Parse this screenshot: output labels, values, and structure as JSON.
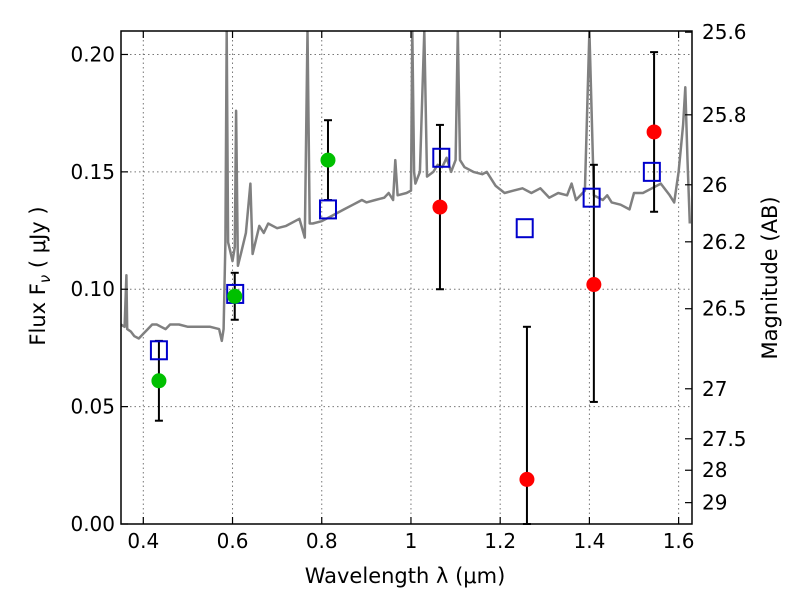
{
  "chart_data": {
    "type": "scatter",
    "xlabel": "Wavelength  λ (μm)",
    "ylabel": "Flux  F",
    "ylabel_sub": "ν",
    "ylabel_unit": "( μJy )",
    "y2label": "Magnitude (AB)",
    "xlim": [
      0.35,
      1.63
    ],
    "ylim": [
      0.0,
      0.21
    ],
    "grid": true,
    "x_ticks": [
      {
        "value": 0.4,
        "label": "0.4"
      },
      {
        "value": 0.6,
        "label": "0.6"
      },
      {
        "value": 0.8,
        "label": "0.8"
      },
      {
        "value": 1.0,
        "label": "1"
      },
      {
        "value": 1.2,
        "label": "1.2"
      },
      {
        "value": 1.4,
        "label": "1.4"
      },
      {
        "value": 1.6,
        "label": "1.6"
      }
    ],
    "y_ticks": [
      {
        "value": 0.0,
        "label": "0.00"
      },
      {
        "value": 0.05,
        "label": "0.05"
      },
      {
        "value": 0.1,
        "label": "0.10"
      },
      {
        "value": 0.15,
        "label": "0.15"
      },
      {
        "value": 0.2,
        "label": "0.20"
      }
    ],
    "y2_ticks": [
      {
        "flux": 0.2095,
        "label": "25.6"
      },
      {
        "flux": 0.1743,
        "label": "25.8"
      },
      {
        "flux": 0.1445,
        "label": "26"
      },
      {
        "flux": 0.1202,
        "label": "26.2"
      },
      {
        "flux": 0.0917,
        "label": "26.5"
      },
      {
        "flux": 0.0576,
        "label": "27"
      },
      {
        "flux": 0.0363,
        "label": "27.5"
      },
      {
        "flux": 0.0229,
        "label": "28"
      },
      {
        "flux": 0.0091,
        "label": "29"
      }
    ],
    "colors": {
      "spectrum": "#808080",
      "green": "#00c000",
      "red": "#ff0000",
      "model": "#0000cc",
      "errorbar": "#000000"
    },
    "observed_green": [
      {
        "x": 0.435,
        "y": 0.061,
        "err_low": 0.044,
        "err_high": 0.078
      },
      {
        "x": 0.605,
        "y": 0.097,
        "err_low": 0.087,
        "err_high": 0.107
      },
      {
        "x": 0.814,
        "y": 0.155,
        "err_low": 0.138,
        "err_high": 0.172
      }
    ],
    "observed_red": [
      {
        "x": 1.065,
        "y": 0.135,
        "err_low": 0.1,
        "err_high": 0.17
      },
      {
        "x": 1.26,
        "y": 0.019,
        "err_low": 0.0,
        "err_high": 0.084
      },
      {
        "x": 1.41,
        "y": 0.102,
        "err_low": 0.052,
        "err_high": 0.153
      },
      {
        "x": 1.545,
        "y": 0.167,
        "err_low": 0.133,
        "err_high": 0.201
      }
    ],
    "model_photometry": [
      {
        "x": 0.435,
        "y": 0.074
      },
      {
        "x": 0.606,
        "y": 0.098
      },
      {
        "x": 0.814,
        "y": 0.134
      },
      {
        "x": 1.068,
        "y": 0.156
      },
      {
        "x": 1.255,
        "y": 0.126
      },
      {
        "x": 1.405,
        "y": 0.139
      },
      {
        "x": 1.54,
        "y": 0.15
      }
    ],
    "spectrum": [
      [
        0.35,
        0.085
      ],
      [
        0.358,
        0.084
      ],
      [
        0.362,
        0.106
      ],
      [
        0.364,
        0.083
      ],
      [
        0.372,
        0.082
      ],
      [
        0.38,
        0.08
      ],
      [
        0.39,
        0.079
      ],
      [
        0.4,
        0.081
      ],
      [
        0.41,
        0.083
      ],
      [
        0.42,
        0.085
      ],
      [
        0.43,
        0.085
      ],
      [
        0.44,
        0.084
      ],
      [
        0.45,
        0.083
      ],
      [
        0.46,
        0.085
      ],
      [
        0.48,
        0.085
      ],
      [
        0.5,
        0.084
      ],
      [
        0.52,
        0.084
      ],
      [
        0.55,
        0.084
      ],
      [
        0.57,
        0.083
      ],
      [
        0.576,
        0.078
      ],
      [
        0.58,
        0.083
      ],
      [
        0.584,
        0.12
      ],
      [
        0.587,
        0.21
      ],
      [
        0.59,
        0.12
      ],
      [
        0.594,
        0.117
      ],
      [
        0.6,
        0.112
      ],
      [
        0.605,
        0.118
      ],
      [
        0.608,
        0.176
      ],
      [
        0.612,
        0.11
      ],
      [
        0.62,
        0.116
      ],
      [
        0.63,
        0.124
      ],
      [
        0.64,
        0.145
      ],
      [
        0.645,
        0.115
      ],
      [
        0.66,
        0.127
      ],
      [
        0.67,
        0.124
      ],
      [
        0.68,
        0.128
      ],
      [
        0.7,
        0.126
      ],
      [
        0.72,
        0.127
      ],
      [
        0.75,
        0.13
      ],
      [
        0.762,
        0.122
      ],
      [
        0.768,
        0.21
      ],
      [
        0.773,
        0.128
      ],
      [
        0.78,
        0.128
      ],
      [
        0.8,
        0.129
      ],
      [
        0.82,
        0.131
      ],
      [
        0.83,
        0.132
      ],
      [
        0.85,
        0.134
      ],
      [
        0.87,
        0.136
      ],
      [
        0.88,
        0.137
      ],
      [
        0.89,
        0.138
      ],
      [
        0.9,
        0.137
      ],
      [
        0.92,
        0.138
      ],
      [
        0.94,
        0.139
      ],
      [
        0.95,
        0.141
      ],
      [
        0.96,
        0.138
      ],
      [
        0.965,
        0.155
      ],
      [
        0.97,
        0.14
      ],
      [
        0.99,
        0.141
      ],
      [
        1.0,
        0.142
      ],
      [
        1.003,
        0.21
      ],
      [
        1.007,
        0.15
      ],
      [
        1.01,
        0.145
      ],
      [
        1.02,
        0.15
      ],
      [
        1.03,
        0.21
      ],
      [
        1.036,
        0.148
      ],
      [
        1.05,
        0.15
      ],
      [
        1.06,
        0.153
      ],
      [
        1.07,
        0.152
      ],
      [
        1.08,
        0.156
      ],
      [
        1.09,
        0.15
      ],
      [
        1.1,
        0.155
      ],
      [
        1.105,
        0.21
      ],
      [
        1.11,
        0.155
      ],
      [
        1.12,
        0.152
      ],
      [
        1.14,
        0.15
      ],
      [
        1.16,
        0.149
      ],
      [
        1.17,
        0.15
      ],
      [
        1.19,
        0.144
      ],
      [
        1.21,
        0.141
      ],
      [
        1.23,
        0.142
      ],
      [
        1.25,
        0.143
      ],
      [
        1.27,
        0.141
      ],
      [
        1.29,
        0.143
      ],
      [
        1.31,
        0.139
      ],
      [
        1.33,
        0.141
      ],
      [
        1.35,
        0.14
      ],
      [
        1.36,
        0.145
      ],
      [
        1.37,
        0.138
      ],
      [
        1.39,
        0.142
      ],
      [
        1.4,
        0.21
      ],
      [
        1.41,
        0.14
      ],
      [
        1.43,
        0.138
      ],
      [
        1.44,
        0.14
      ],
      [
        1.45,
        0.137
      ],
      [
        1.47,
        0.136
      ],
      [
        1.49,
        0.134
      ],
      [
        1.5,
        0.141
      ],
      [
        1.52,
        0.141
      ],
      [
        1.54,
        0.143
      ],
      [
        1.56,
        0.145
      ],
      [
        1.58,
        0.14
      ],
      [
        1.59,
        0.137
      ],
      [
        1.6,
        0.15
      ],
      [
        1.61,
        0.17
      ],
      [
        1.615,
        0.186
      ],
      [
        1.62,
        0.155
      ],
      [
        1.625,
        0.128
      ]
    ]
  }
}
